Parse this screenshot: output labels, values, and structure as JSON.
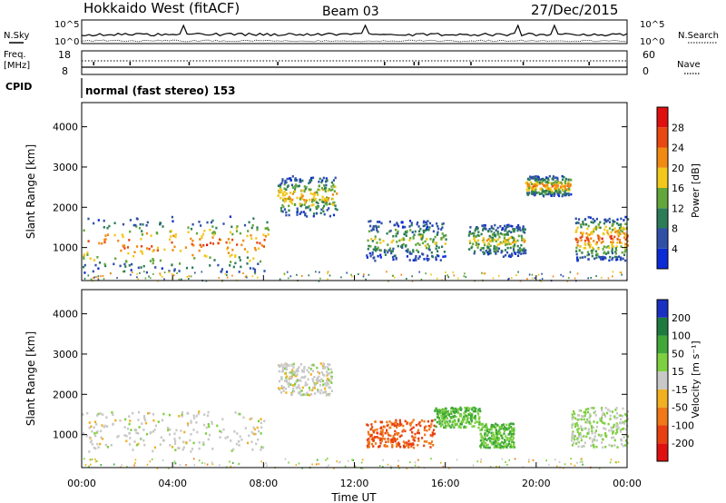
{
  "header": {
    "station": "Hokkaido West (fitACF)",
    "beam": "Beam 03",
    "date": "27/Dec/2015"
  },
  "top_panels": {
    "nsky_label": "N.Sky",
    "nsearch_label": "N.Search",
    "noise_ticks_left": [
      "10^5",
      "10^0"
    ],
    "noise_ticks_right": [
      "10^5",
      "10^0"
    ],
    "freq_label_1": "Freq.",
    "freq_label_2": "[MHz]",
    "freq_ticks": [
      "18",
      "8"
    ],
    "nave_label": "Nave",
    "nave_ticks": [
      "60",
      "0"
    ],
    "cpid_label": "CPID",
    "cpid_value": "normal (fast stereo) 153"
  },
  "axes": {
    "ylabel": "Slant Range [km]",
    "xlabel": "Time UT",
    "xticks": [
      "00:00",
      "04:00",
      "08:00",
      "12:00",
      "16:00",
      "20:00",
      "00:00"
    ],
    "yticks": [
      "1000",
      "2000",
      "3000",
      "4000"
    ]
  },
  "colorbars": {
    "power": {
      "label": "Power [dB]",
      "ticks": [
        "4",
        "8",
        "12",
        "16",
        "20",
        "24",
        "28"
      ],
      "colors": [
        "#0b2bd6",
        "#3050a8",
        "#2c7c58",
        "#63a63a",
        "#f2c81a",
        "#f08a12",
        "#e84812",
        "#e01010"
      ]
    },
    "velocity": {
      "label": "Velocity [m s⁻¹]",
      "ticks": [
        "200",
        "100",
        "50",
        "15",
        "-15",
        "-50",
        "-100",
        "-200"
      ],
      "colors": [
        "#1a30c0",
        "#1f7a40",
        "#3fa838",
        "#7fd040",
        "#c8c8c8",
        "#f0b020",
        "#f07818",
        "#e84010",
        "#e01010"
      ]
    }
  },
  "chart_data": [
    {
      "type": "heatmap",
      "title": "Power [dB]",
      "xlabel": "Time UT",
      "ylabel": "Slant Range [km]",
      "xlim_hours": [
        0,
        24
      ],
      "ylim_km": [
        180,
        4600
      ],
      "zlim_db": [
        0,
        30
      ],
      "regions": [
        {
          "t0": 0.0,
          "t1": 8.2,
          "r0": 400,
          "r1": 1800,
          "power": 22
        },
        {
          "t0": 8.6,
          "t1": 11.2,
          "r0": 1800,
          "r1": 2800,
          "power": 18
        },
        {
          "t0": 12.5,
          "t1": 16.0,
          "r0": 700,
          "r1": 1700,
          "power": 14
        },
        {
          "t0": 17.0,
          "t1": 19.5,
          "r0": 800,
          "r1": 1600,
          "power": 16
        },
        {
          "t0": 19.5,
          "t1": 21.5,
          "r0": 2300,
          "r1": 2800,
          "power": 20
        },
        {
          "t0": 21.7,
          "t1": 24.0,
          "r0": 700,
          "r1": 1800,
          "power": 22
        }
      ]
    },
    {
      "type": "heatmap",
      "title": "Velocity [m s⁻¹]",
      "xlabel": "Time UT",
      "ylabel": "Slant Range [km]",
      "xlim_hours": [
        0,
        24
      ],
      "ylim_km": [
        180,
        4600
      ],
      "zlim_mps": [
        -200,
        200
      ],
      "regions": [
        {
          "t0": 0.0,
          "t1": 8.0,
          "r0": 600,
          "r1": 1600,
          "velocity": 0
        },
        {
          "t0": 8.6,
          "t1": 11.0,
          "r0": 2000,
          "r1": 2800,
          "velocity": 0
        },
        {
          "t0": 12.5,
          "t1": 15.5,
          "r0": 700,
          "r1": 1400,
          "velocity": -100
        },
        {
          "t0": 15.5,
          "t1": 17.5,
          "r0": 1200,
          "r1": 1700,
          "velocity": 50
        },
        {
          "t0": 17.5,
          "t1": 19.0,
          "r0": 700,
          "r1": 1300,
          "velocity": 50
        },
        {
          "t0": 21.5,
          "t1": 24.0,
          "r0": 700,
          "r1": 1700,
          "velocity": 15
        }
      ]
    }
  ]
}
